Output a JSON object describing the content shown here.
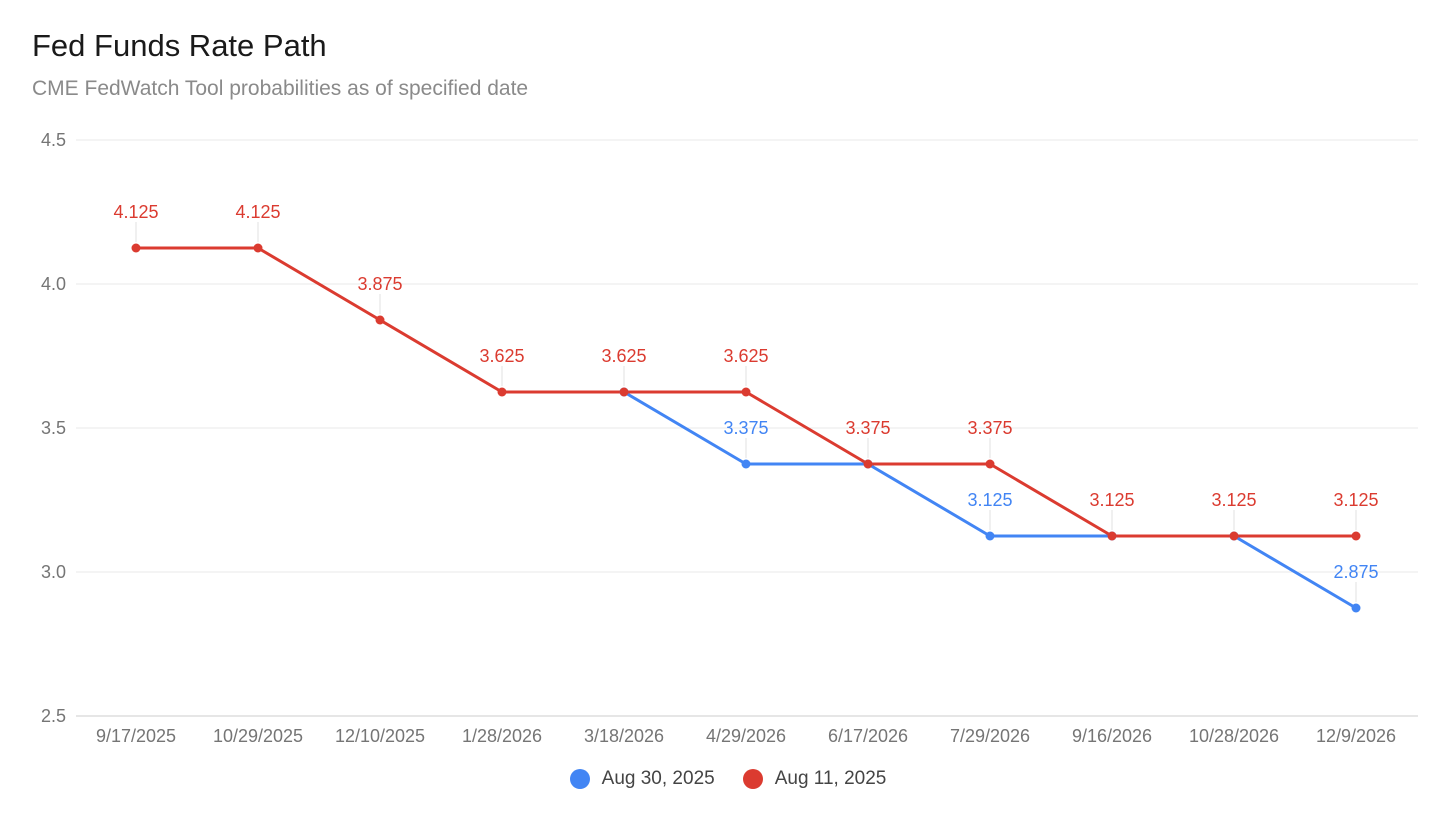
{
  "chart_data": {
    "type": "line",
    "title": "Fed Funds Rate Path",
    "subtitle": "CME FedWatch Tool probabilities as of specified date",
    "xlabel": "",
    "ylabel": "",
    "ylim": [
      2.5,
      4.5
    ],
    "yticks": [
      "2.5",
      "3.0",
      "3.5",
      "4.0",
      "4.5"
    ],
    "ytick_values": [
      2.5,
      3.0,
      3.5,
      4.0,
      4.5
    ],
    "categories": [
      "9/17/2025",
      "10/29/2025",
      "12/10/2025",
      "1/28/2026",
      "3/18/2026",
      "4/29/2026",
      "6/17/2026",
      "7/29/2026",
      "9/16/2026",
      "10/28/2026",
      "12/9/2026"
    ],
    "grid": true,
    "legend_position": "bottom-center",
    "series": [
      {
        "name": "Aug 30, 2025",
        "color": "#4285f4",
        "start_index": 4,
        "values": [
          null,
          null,
          null,
          null,
          3.625,
          3.375,
          3.375,
          3.125,
          3.125,
          3.125,
          2.875
        ],
        "labels": [
          null,
          null,
          null,
          null,
          null,
          "3.375",
          null,
          "3.125",
          null,
          null,
          "2.875"
        ]
      },
      {
        "name": "Aug 11, 2025",
        "color": "#db3b30",
        "values": [
          4.125,
          4.125,
          3.875,
          3.625,
          3.625,
          3.625,
          3.375,
          3.375,
          3.125,
          3.125,
          3.125
        ],
        "labels": [
          "4.125",
          "4.125",
          "3.875",
          "3.625",
          "3.625",
          "3.625",
          "3.375",
          "3.375",
          "3.125",
          "3.125",
          "3.125"
        ]
      }
    ]
  },
  "legend": {
    "items": [
      {
        "label": "Aug 30, 2025",
        "color": "#4285f4"
      },
      {
        "label": "Aug 11, 2025",
        "color": "#db3b30"
      }
    ]
  }
}
